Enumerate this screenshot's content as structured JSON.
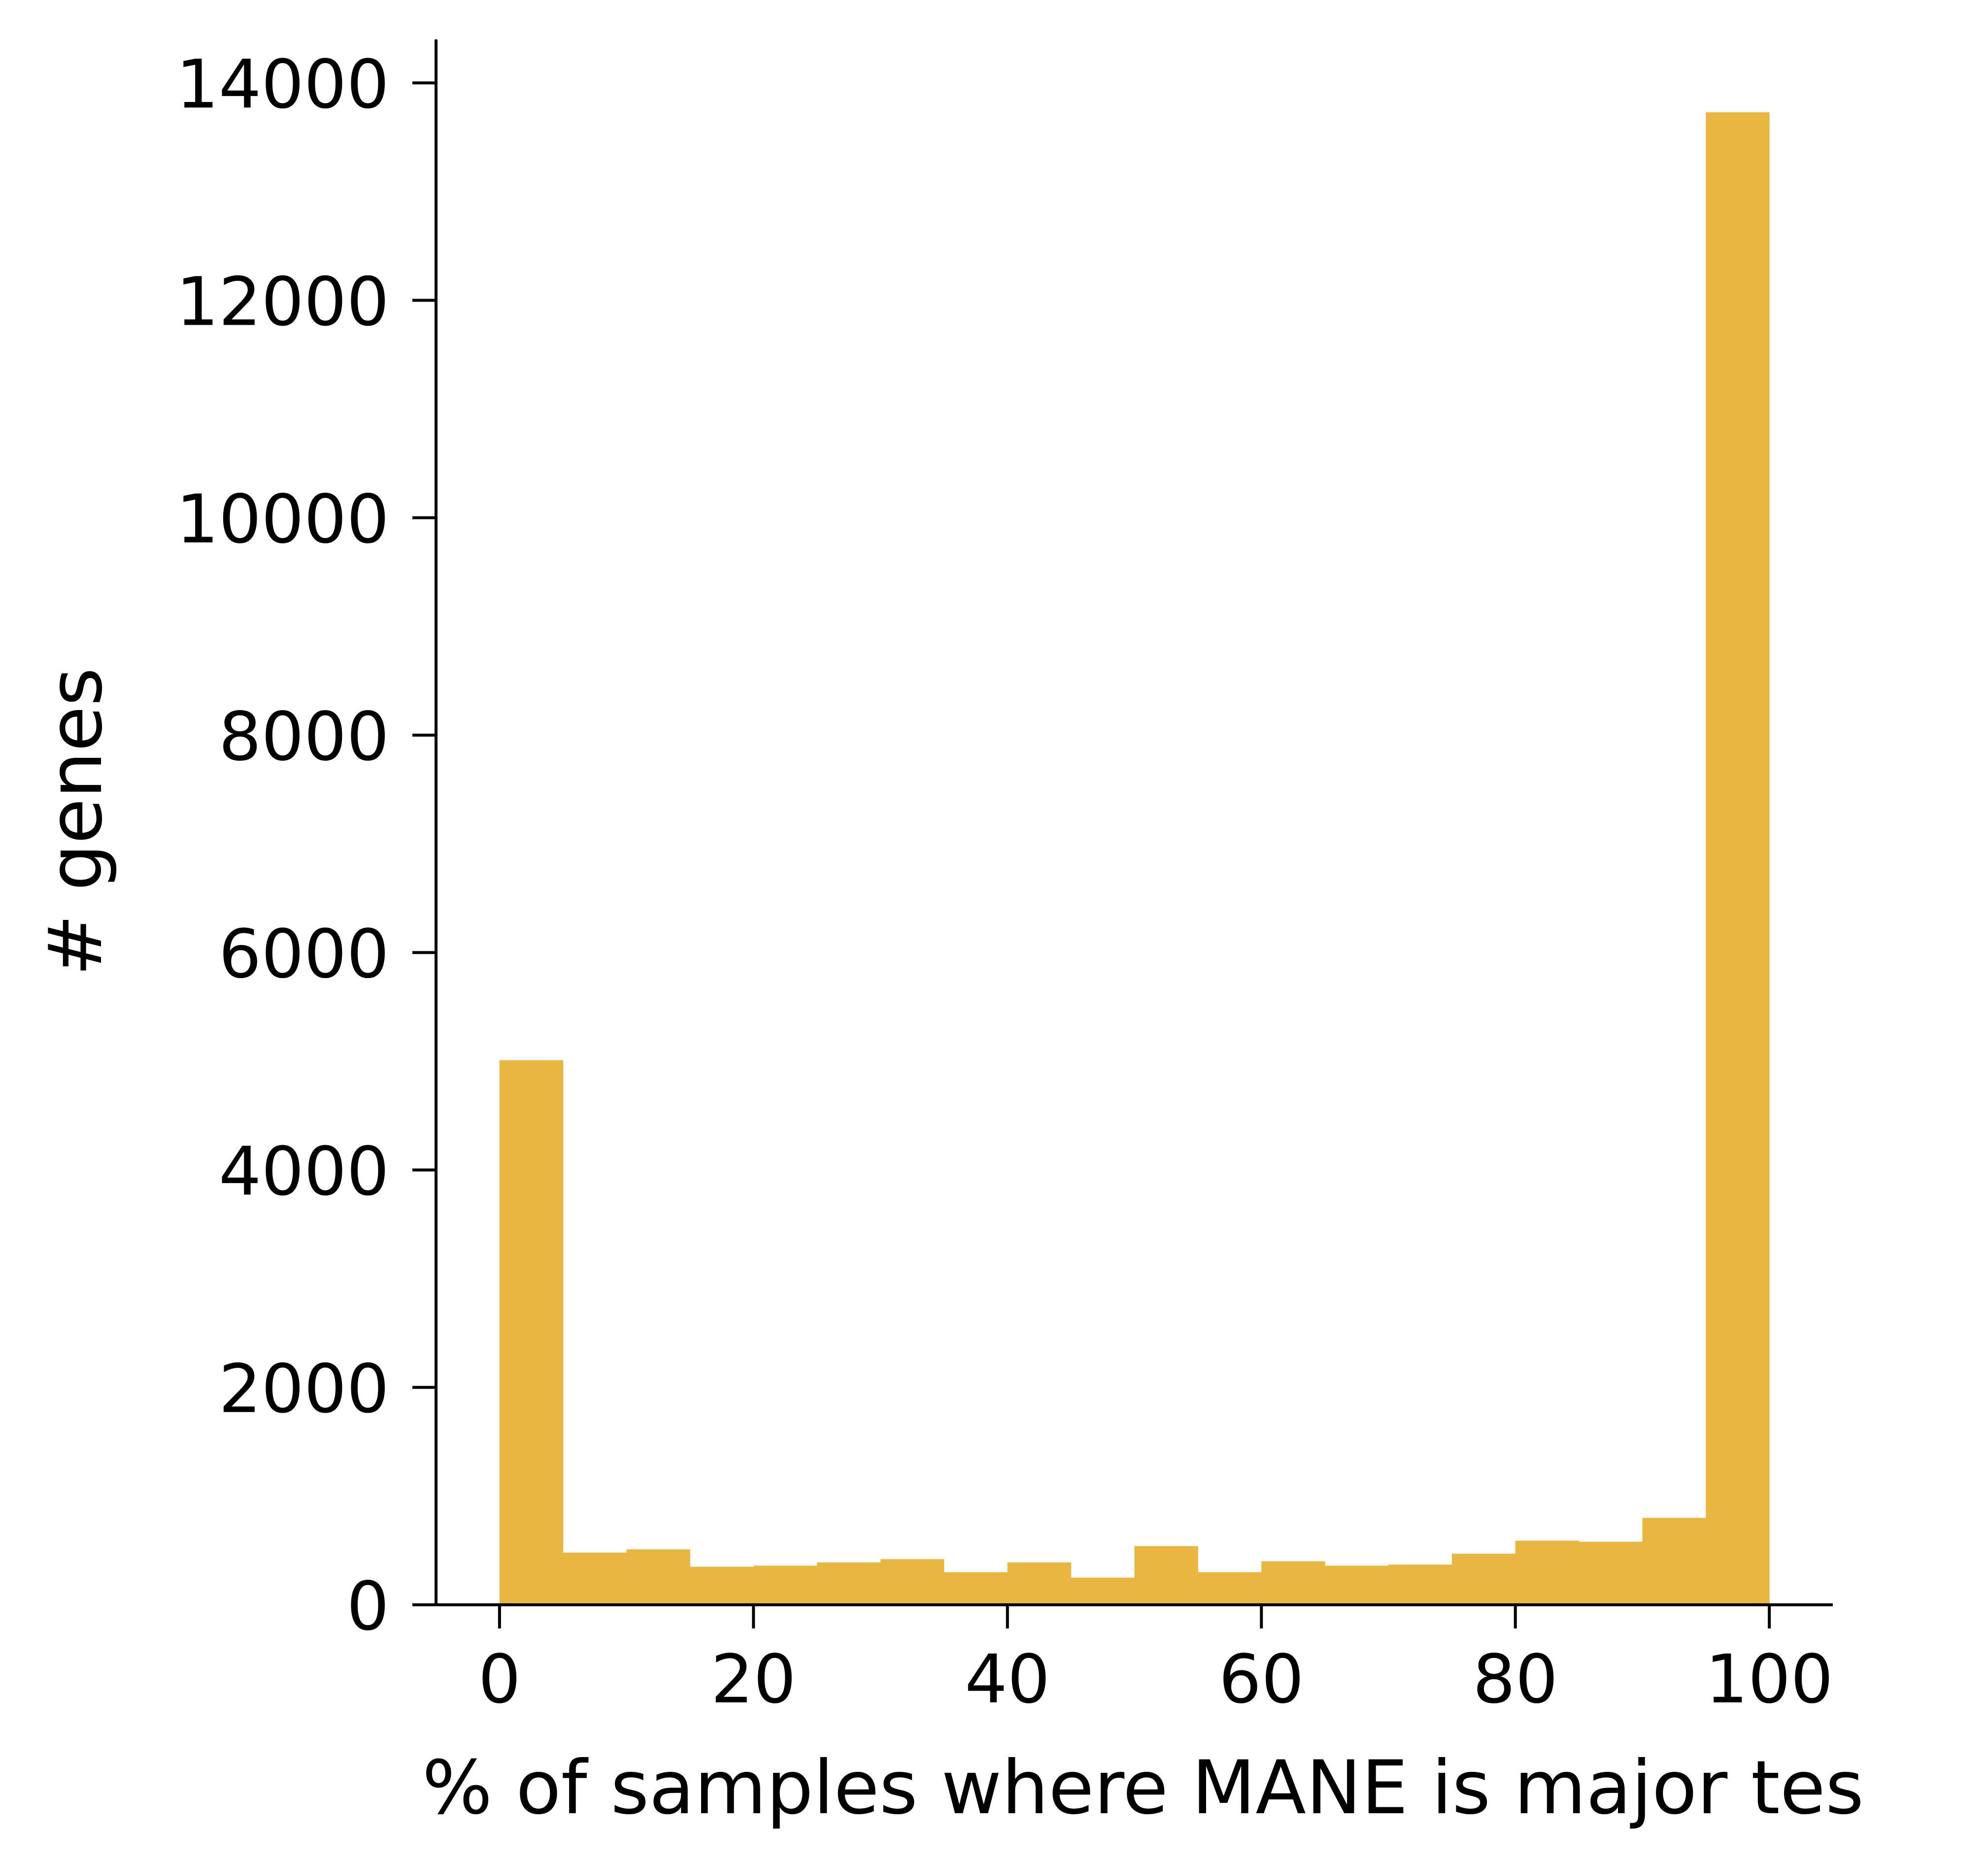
{
  "chart_data": {
    "type": "bar",
    "xlabel": "% of samples where MANE is major tes",
    "ylabel": "# genes",
    "xlim": [
      -5,
      105
    ],
    "ylim": [
      0,
      14400
    ],
    "xticks": [
      0,
      20,
      40,
      60,
      80,
      100
    ],
    "yticks": [
      0,
      2000,
      4000,
      6000,
      8000,
      10000,
      12000,
      14000
    ],
    "bin_edges": [
      0,
      5,
      10,
      15,
      20,
      25,
      30,
      35,
      40,
      45,
      50,
      55,
      60,
      65,
      70,
      75,
      80,
      85,
      90,
      95,
      100
    ],
    "values": [
      5010,
      480,
      510,
      350,
      360,
      390,
      420,
      300,
      390,
      250,
      540,
      300,
      400,
      360,
      370,
      470,
      590,
      580,
      800,
      13730
    ],
    "bar_color": "#E9B641",
    "grid": false
  }
}
